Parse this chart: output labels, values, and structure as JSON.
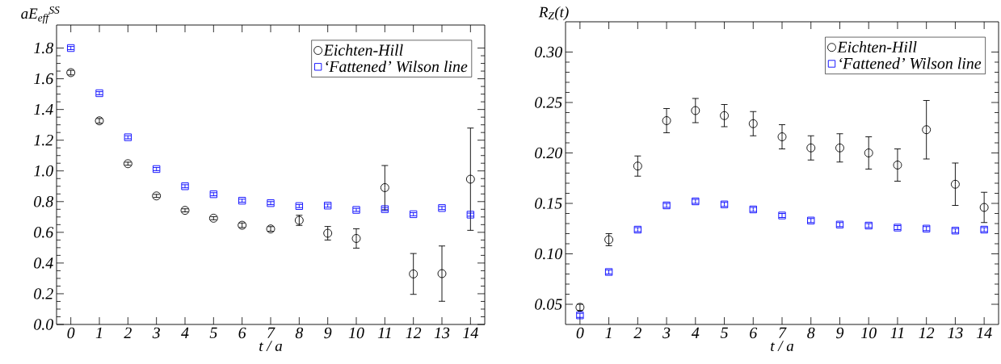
{
  "chart_data": [
    {
      "type": "scatter",
      "xlabel": "t / a",
      "ylabel": "aE$_{eff}$$^{SS}$",
      "x": [
        0,
        1,
        2,
        3,
        4,
        5,
        6,
        7,
        8,
        9,
        10,
        11,
        12,
        13,
        14
      ],
      "xlim": [
        -0.5,
        14.5
      ],
      "xticks": [
        0,
        1,
        2,
        3,
        4,
        5,
        6,
        7,
        8,
        9,
        10,
        11,
        12,
        13,
        14
      ],
      "ylim": [
        0,
        1.95
      ],
      "yticks": [
        {
          "value": 0,
          "label": "0.0"
        },
        {
          "value": 0.2,
          "label": "0.2"
        },
        {
          "value": 0.4,
          "label": "0.4"
        },
        {
          "value": 0.6,
          "label": "0.6"
        },
        {
          "value": 0.8,
          "label": "0.8"
        },
        {
          "value": 1.0,
          "label": "1.0"
        },
        {
          "value": 1.2,
          "label": "1.2"
        },
        {
          "value": 1.4,
          "label": "1.4"
        },
        {
          "value": 1.6,
          "label": "1.6"
        },
        {
          "value": 1.8,
          "label": "1.8"
        }
      ],
      "legend": "top right",
      "series": [
        {
          "name": "Eichten-Hill",
          "color": "#000000",
          "marker": "circle",
          "values": [
            1.64,
            1.326,
            1.047,
            0.837,
            0.743,
            0.692,
            0.646,
            0.622,
            0.678,
            0.594,
            0.56,
            0.891,
            0.329,
            0.331,
            0.946
          ],
          "errors": [
            0.015,
            0.015,
            0.01,
            0.01,
            0.01,
            0.01,
            0.015,
            0.015,
            0.033,
            0.044,
            0.063,
            0.144,
            0.133,
            0.18,
            0.333
          ]
        },
        {
          "name": "‘Fattened’ Wilson line",
          "color": "#0000ff",
          "marker": "square",
          "values": [
            1.8,
            1.506,
            1.219,
            1.012,
            0.9,
            0.848,
            0.806,
            0.79,
            0.771,
            0.774,
            0.746,
            0.751,
            0.718,
            0.758,
            0.715
          ],
          "errors": [
            0.01,
            0.01,
            0.01,
            0.01,
            0.01,
            0.01,
            0.01,
            0.01,
            0.01,
            0.01,
            0.01,
            0.01,
            0.01,
            0.01,
            0.01
          ]
        }
      ]
    },
    {
      "type": "scatter",
      "xlabel": "t / a",
      "ylabel": "R$_{Z}$(t)",
      "x": [
        0,
        1,
        2,
        3,
        4,
        5,
        6,
        7,
        8,
        9,
        10,
        11,
        12,
        13,
        14
      ],
      "xlim": [
        -0.5,
        14.5
      ],
      "xticks": [
        0,
        1,
        2,
        3,
        4,
        5,
        6,
        7,
        8,
        9,
        10,
        11,
        12,
        13,
        14
      ],
      "ylim": [
        0.03,
        0.33
      ],
      "yticks": [
        {
          "value": 0.05,
          "label": "0.05"
        },
        {
          "value": 0.1,
          "label": "0.10"
        },
        {
          "value": 0.15,
          "label": "0.15"
        },
        {
          "value": 0.2,
          "label": "0.20"
        },
        {
          "value": 0.25,
          "label": "0.25"
        },
        {
          "value": 0.3,
          "label": "0.30"
        }
      ],
      "legend": "top right",
      "series": [
        {
          "name": "Eichten-Hill",
          "color": "#000000",
          "marker": "circle",
          "values": [
            0.047,
            0.114,
            0.187,
            0.232,
            0.242,
            0.237,
            0.229,
            0.216,
            0.205,
            0.205,
            0.2,
            0.188,
            0.223,
            0.169,
            0.146
          ],
          "errors": [
            0.003,
            0.006,
            0.01,
            0.012,
            0.012,
            0.011,
            0.012,
            0.012,
            0.012,
            0.014,
            0.016,
            0.016,
            0.029,
            0.021,
            0.015
          ]
        },
        {
          "name": "‘Fattened’ Wilson line",
          "color": "#0000ff",
          "marker": "square",
          "values": [
            0.039,
            0.082,
            0.124,
            0.148,
            0.152,
            0.149,
            0.144,
            0.138,
            0.133,
            0.129,
            0.128,
            0.126,
            0.125,
            0.123,
            0.124
          ],
          "errors": [
            0.002,
            0.002,
            0.002,
            0.002,
            0.002,
            0.002,
            0.002,
            0.002,
            0.002,
            0.002,
            0.002,
            0.002,
            0.002,
            0.002,
            0.002
          ]
        }
      ]
    }
  ]
}
